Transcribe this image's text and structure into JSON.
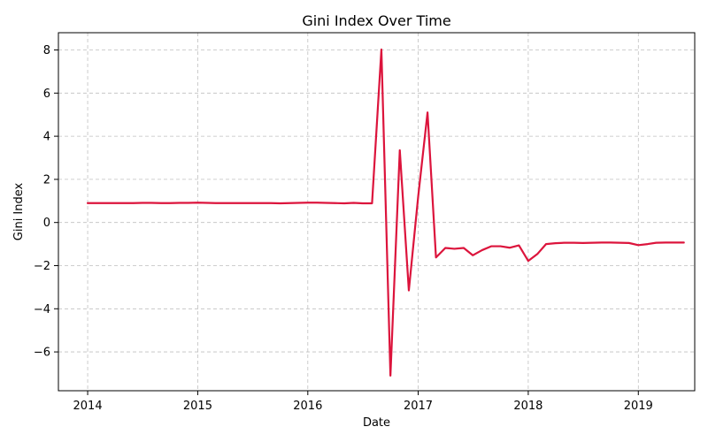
{
  "chart_data": {
    "type": "line",
    "title": "Gini Index Over Time",
    "xlabel": "Date",
    "ylabel": "Gini Index",
    "xlim": [
      "2013-09-26",
      "2019-07-07"
    ],
    "ylim": [
      -7.8,
      8.8
    ],
    "x_ticks": [
      "2014",
      "2015",
      "2016",
      "2017",
      "2018",
      "2019"
    ],
    "y_ticks": [
      -6,
      -4,
      -2,
      0,
      2,
      4,
      6,
      8
    ],
    "y_tick_labels": [
      "−6",
      "−4",
      "−2",
      "0",
      "2",
      "4",
      "6",
      "8"
    ],
    "grid": true,
    "series": [
      {
        "color": "#dc143c",
        "x": [
          "2014-01-01",
          "2014-02-01",
          "2014-03-01",
          "2014-04-01",
          "2014-05-01",
          "2014-06-01",
          "2014-07-01",
          "2014-08-01",
          "2014-09-01",
          "2014-10-01",
          "2014-11-01",
          "2014-12-01",
          "2015-01-01",
          "2015-02-01",
          "2015-03-01",
          "2015-04-01",
          "2015-05-01",
          "2015-06-01",
          "2015-07-01",
          "2015-08-01",
          "2015-09-01",
          "2015-10-01",
          "2015-11-01",
          "2015-12-01",
          "2016-01-01",
          "2016-02-01",
          "2016-03-01",
          "2016-04-01",
          "2016-05-01",
          "2016-06-01",
          "2016-07-01",
          "2016-08-01",
          "2016-09-01",
          "2016-10-01",
          "2016-11-01",
          "2016-12-01",
          "2017-01-01",
          "2017-02-01",
          "2017-03-01",
          "2017-04-01",
          "2017-05-01",
          "2017-06-01",
          "2017-07-01",
          "2017-08-01",
          "2017-09-01",
          "2017-10-01",
          "2017-11-01",
          "2017-12-01",
          "2018-01-01",
          "2018-02-01",
          "2018-03-01",
          "2018-04-01",
          "2018-05-01",
          "2018-06-01",
          "2018-07-01",
          "2018-08-01",
          "2018-09-01",
          "2018-10-01",
          "2018-11-01",
          "2018-12-01",
          "2019-01-01",
          "2019-02-01",
          "2019-03-01",
          "2019-04-01",
          "2019-05-01",
          "2019-06-01"
        ],
        "y": [
          0.9,
          0.9,
          0.9,
          0.9,
          0.9,
          0.9,
          0.91,
          0.91,
          0.9,
          0.9,
          0.91,
          0.91,
          0.92,
          0.91,
          0.9,
          0.9,
          0.9,
          0.9,
          0.9,
          0.9,
          0.9,
          0.89,
          0.9,
          0.91,
          0.92,
          0.92,
          0.91,
          0.9,
          0.89,
          0.91,
          0.89,
          0.89,
          8.02,
          -7.1,
          3.35,
          -3.15,
          1.2,
          5.1,
          -1.62,
          -1.18,
          -1.22,
          -1.18,
          -1.52,
          -1.28,
          -1.1,
          -1.1,
          -1.17,
          -1.06,
          -1.78,
          -1.45,
          -1.0,
          -0.96,
          -0.94,
          -0.94,
          -0.95,
          -0.94,
          -0.93,
          -0.93,
          -0.94,
          -0.95,
          -1.05,
          -1.0,
          -0.94,
          -0.93,
          -0.93,
          -0.93
        ]
      }
    ]
  }
}
